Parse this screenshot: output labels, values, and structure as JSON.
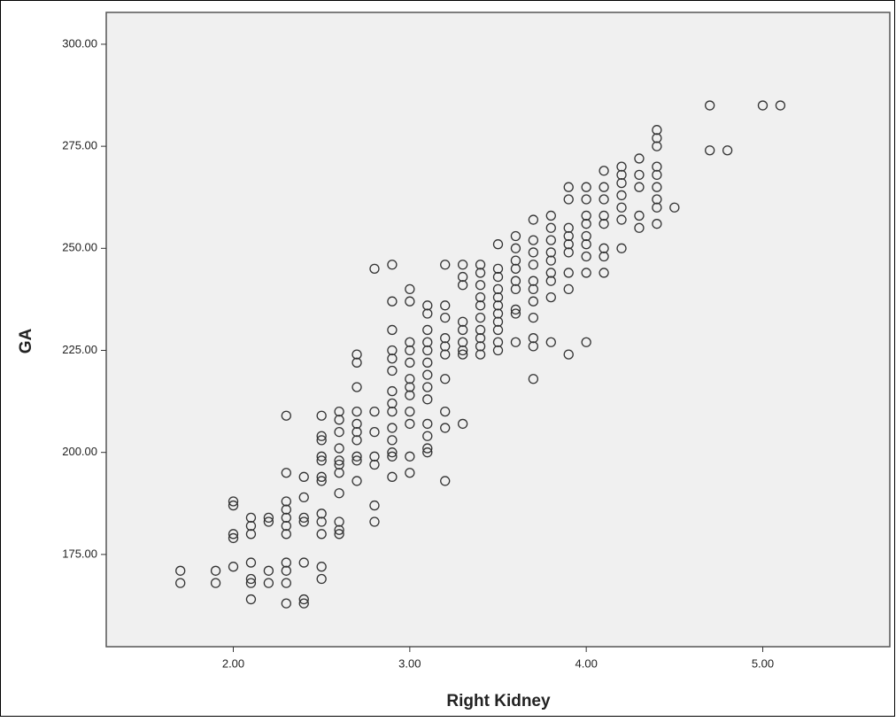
{
  "chart_data": {
    "type": "scatter",
    "xlabel": "Right Kidney",
    "ylabel": "GA",
    "xlim": [
      1.28,
      5.72
    ],
    "ylim": [
      152.4,
      307.8
    ],
    "xticks": [
      {
        "value": 2,
        "label": "2.00"
      },
      {
        "value": 3,
        "label": "3.00"
      },
      {
        "value": 4,
        "label": "4.00"
      },
      {
        "value": 5,
        "label": "5.00"
      }
    ],
    "yticks": [
      {
        "value": 175,
        "label": "175.00"
      },
      {
        "value": 200,
        "label": "200.00"
      },
      {
        "value": 225,
        "label": "225.00"
      },
      {
        "value": 250,
        "label": "250.00"
      },
      {
        "value": 275,
        "label": "275.00"
      },
      {
        "value": 300,
        "label": "300.00"
      }
    ],
    "color": "#333333",
    "x": [
      1.7,
      1.7,
      1.9,
      1.9,
      2.0,
      2.0,
      2.0,
      2.0,
      2.0,
      2.1,
      2.1,
      2.1,
      2.1,
      2.1,
      2.1,
      2.1,
      2.2,
      2.2,
      2.2,
      2.2,
      2.3,
      2.3,
      2.3,
      2.3,
      2.3,
      2.3,
      2.3,
      2.3,
      2.3,
      2.3,
      2.3,
      2.4,
      2.4,
      2.4,
      2.4,
      2.4,
      2.4,
      2.4,
      2.5,
      2.5,
      2.5,
      2.5,
      2.5,
      2.5,
      2.5,
      2.5,
      2.5,
      2.5,
      2.5,
      2.5,
      2.6,
      2.6,
      2.6,
      2.6,
      2.6,
      2.6,
      2.6,
      2.6,
      2.6,
      2.6,
      2.6,
      2.7,
      2.7,
      2.7,
      2.7,
      2.7,
      2.7,
      2.7,
      2.7,
      2.7,
      2.7,
      2.8,
      2.8,
      2.8,
      2.8,
      2.8,
      2.8,
      2.8,
      2.9,
      2.9,
      2.9,
      2.9,
      2.9,
      2.9,
      2.9,
      2.9,
      2.9,
      2.9,
      2.9,
      2.9,
      2.9,
      2.9,
      3.0,
      3.0,
      3.0,
      3.0,
      3.0,
      3.0,
      3.0,
      3.0,
      3.0,
      3.0,
      3.0,
      3.0,
      3.1,
      3.1,
      3.1,
      3.1,
      3.1,
      3.1,
      3.1,
      3.1,
      3.1,
      3.1,
      3.1,
      3.1,
      3.1,
      3.2,
      3.2,
      3.2,
      3.2,
      3.2,
      3.2,
      3.2,
      3.2,
      3.2,
      3.2,
      3.3,
      3.3,
      3.3,
      3.3,
      3.3,
      3.3,
      3.3,
      3.3,
      3.3,
      3.4,
      3.4,
      3.4,
      3.4,
      3.4,
      3.4,
      3.4,
      3.4,
      3.4,
      3.4,
      3.5,
      3.5,
      3.5,
      3.5,
      3.5,
      3.5,
      3.5,
      3.5,
      3.5,
      3.5,
      3.5,
      3.6,
      3.6,
      3.6,
      3.6,
      3.6,
      3.6,
      3.6,
      3.6,
      3.6,
      3.7,
      3.7,
      3.7,
      3.7,
      3.7,
      3.7,
      3.7,
      3.7,
      3.7,
      3.7,
      3.7,
      3.8,
      3.8,
      3.8,
      3.8,
      3.8,
      3.8,
      3.8,
      3.8,
      3.8,
      3.9,
      3.9,
      3.9,
      3.9,
      3.9,
      3.9,
      3.9,
      3.9,
      3.9,
      4.0,
      4.0,
      4.0,
      4.0,
      4.0,
      4.0,
      4.0,
      4.0,
      4.0,
      4.1,
      4.1,
      4.1,
      4.1,
      4.1,
      4.1,
      4.1,
      4.1,
      4.2,
      4.2,
      4.2,
      4.2,
      4.2,
      4.2,
      4.2,
      4.3,
      4.3,
      4.3,
      4.3,
      4.3,
      4.4,
      4.4,
      4.4,
      4.4,
      4.4,
      4.4,
      4.4,
      4.4,
      4.4,
      4.5,
      4.7,
      4.7,
      4.8,
      5.0,
      5.1
    ],
    "y": [
      171,
      168,
      171,
      168,
      188,
      187,
      180,
      179,
      172,
      184,
      182,
      180,
      173,
      169,
      168,
      164,
      184,
      183,
      171,
      168,
      209,
      195,
      188,
      186,
      184,
      182,
      180,
      173,
      171,
      168,
      163,
      194,
      189,
      184,
      183,
      173,
      164,
      163,
      209,
      204,
      203,
      199,
      198,
      194,
      193,
      185,
      183,
      180,
      172,
      169,
      210,
      208,
      205,
      201,
      198,
      197,
      195,
      190,
      183,
      181,
      180,
      224,
      222,
      216,
      210,
      207,
      205,
      203,
      199,
      198,
      193,
      245,
      210,
      205,
      199,
      197,
      187,
      183,
      246,
      237,
      230,
      225,
      223,
      220,
      215,
      212,
      210,
      206,
      203,
      200,
      199,
      194,
      240,
      237,
      227,
      225,
      222,
      218,
      216,
      214,
      210,
      207,
      199,
      195,
      236,
      234,
      230,
      227,
      225,
      222,
      219,
      216,
      213,
      207,
      204,
      201,
      200,
      246,
      236,
      233,
      228,
      226,
      224,
      218,
      210,
      206,
      193,
      246,
      243,
      241,
      232,
      230,
      227,
      225,
      224,
      207,
      246,
      244,
      241,
      238,
      236,
      233,
      230,
      228,
      226,
      224,
      251,
      245,
      243,
      240,
      238,
      236,
      234,
      232,
      230,
      227,
      225,
      253,
      250,
      247,
      245,
      242,
      240,
      235,
      234,
      227,
      257,
      252,
      249,
      246,
      242,
      240,
      237,
      233,
      228,
      226,
      218,
      258,
      255,
      252,
      249,
      247,
      244,
      242,
      238,
      227,
      265,
      262,
      255,
      253,
      251,
      249,
      244,
      240,
      224,
      265,
      262,
      258,
      256,
      253,
      251,
      248,
      244,
      227,
      269,
      265,
      262,
      258,
      256,
      250,
      248,
      244,
      270,
      268,
      266,
      263,
      260,
      257,
      250,
      272,
      268,
      265,
      258,
      255,
      279,
      277,
      275,
      270,
      268,
      265,
      262,
      260,
      256,
      260,
      285,
      274,
      274,
      285,
      285
    ]
  }
}
